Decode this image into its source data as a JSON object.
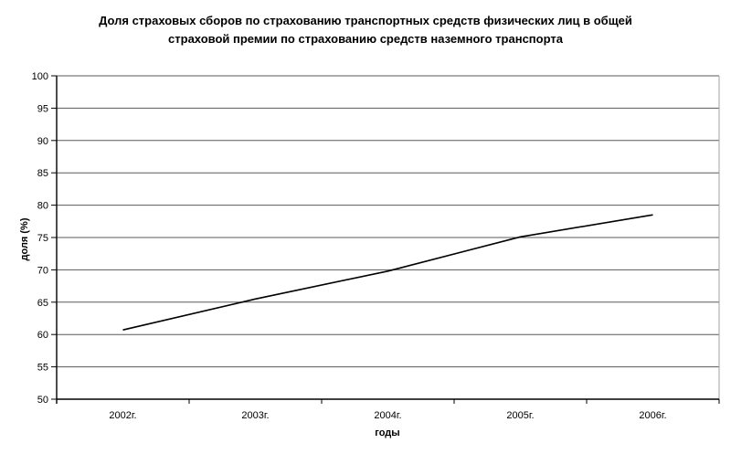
{
  "window": {
    "background": "#ffffff"
  },
  "chart_data": {
    "type": "line",
    "title": "Доля страховых сборов по страхованию транспортных средств физических лиц в общей страховой премии по страхованию средств наземного транспорта",
    "categories": [
      "2002г.",
      "2003г.",
      "2004г.",
      "2005г.",
      "2006г."
    ],
    "values": [
      60.7,
      65.5,
      69.8,
      75.1,
      78.5
    ],
    "xlabel": "годы",
    "ylabel": "доля (%)",
    "ylim": [
      50,
      100
    ],
    "ytick_step": 5,
    "ytick_labels": [
      "50",
      "55",
      "60",
      "65",
      "70",
      "75",
      "80",
      "85",
      "90",
      "95",
      "100"
    ],
    "grid": "horizontal",
    "legend": "none",
    "marker": "none",
    "colors": {
      "line": "#000000",
      "gridline": "#595959",
      "axis": "#000000",
      "plot_right_border": "#a0a0a0",
      "text": "#000000",
      "background": "#ffffff"
    }
  }
}
